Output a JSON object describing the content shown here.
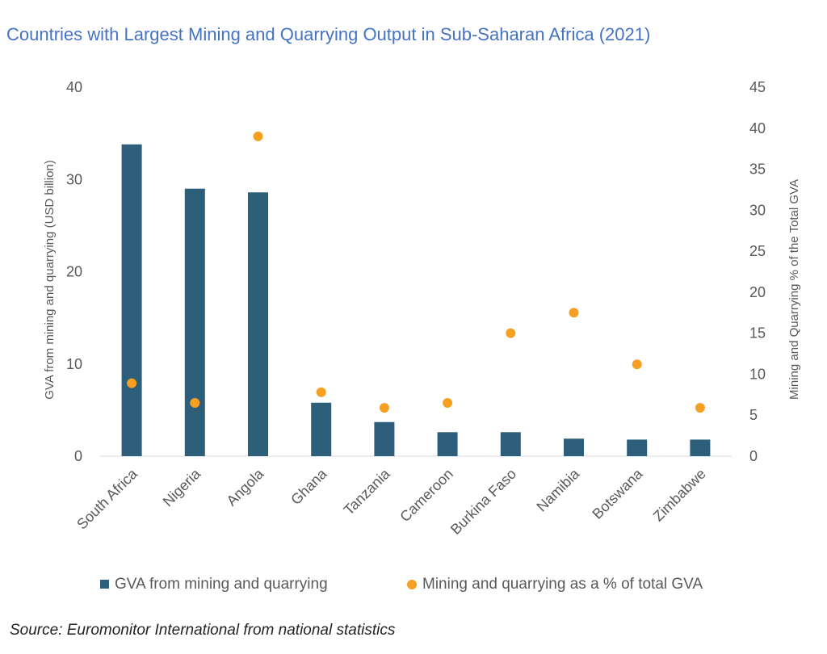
{
  "chart_data": {
    "type": "bar",
    "title": "Countries with Largest Mining and Quarrying Output in Sub-Saharan Africa (2021)",
    "categories": [
      "South Africa",
      "Nigeria",
      "Angola",
      "Ghana",
      "Tanzania",
      "Cameroon",
      "Burkina Faso",
      "Namibia",
      "Botswana",
      "Zimbabwe"
    ],
    "series": [
      {
        "name": "GVA from mining and quarrying",
        "type": "bar",
        "axis": "left",
        "color": "#2E5F7A",
        "values": [
          33.8,
          29.0,
          28.6,
          5.8,
          3.7,
          2.6,
          2.6,
          1.9,
          1.8,
          1.8
        ]
      },
      {
        "name": "Mining and quarrying as a % of total GVA",
        "type": "scatter",
        "axis": "right",
        "color": "#F5A023",
        "values": [
          8.9,
          6.5,
          39.0,
          7.8,
          5.9,
          6.5,
          15.0,
          17.5,
          11.2,
          5.9
        ]
      }
    ],
    "ylabel": "GVA from mining and quarrying (USD billion)",
    "y2label": "Mining and Quarrying % of the Total GVA",
    "ylim": [
      0,
      40
    ],
    "y2lim": [
      0,
      45
    ],
    "yticks": [
      "0",
      "10",
      "20",
      "30",
      "40"
    ],
    "y2ticks": [
      "0",
      "5",
      "10",
      "15",
      "20",
      "25",
      "30",
      "35",
      "40",
      "45"
    ],
    "legend_position": "bottom",
    "grid": false,
    "source": "Source: Euromonitor International from national statistics"
  }
}
